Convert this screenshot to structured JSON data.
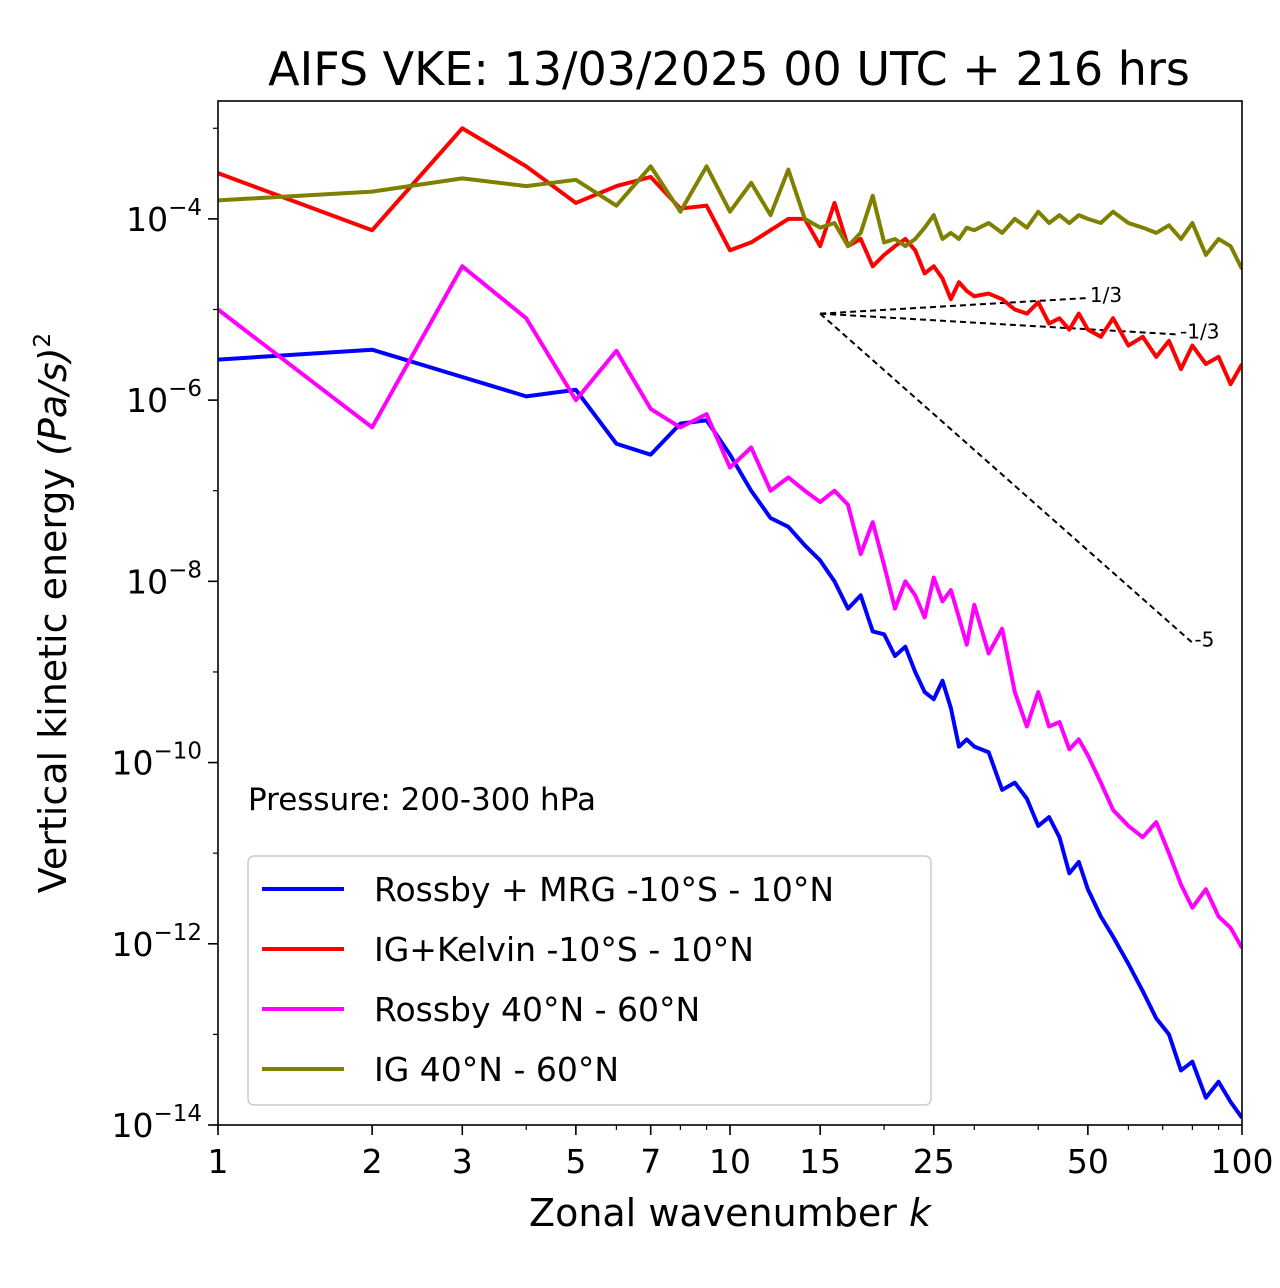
{
  "chart_data": {
    "type": "line",
    "title": "AIFS VKE: 13/03/2025 00 UTC + 216 hrs",
    "xlabel": "Zonal wavenumber",
    "xlabel_var": "k",
    "ylabel": "Vertical kinetic energy",
    "ylabel_units": "(Pa/s)",
    "ylabel_power": "2",
    "x_scale": "log",
    "y_scale": "log",
    "xlim": [
      1,
      100
    ],
    "ylim": [
      1e-14,
      0.002
    ],
    "x_ticks": [
      1,
      2,
      3,
      5,
      7,
      10,
      15,
      25,
      50,
      100
    ],
    "x_tick_labels": [
      "1",
      "2",
      "3",
      "5",
      "7",
      "10",
      "15",
      "25",
      "50",
      "100"
    ],
    "y_ticks": [
      0.0001,
      1e-06,
      1e-08,
      1e-10,
      1e-12,
      1e-14
    ],
    "y_tick_base": "10",
    "y_tick_exponents": [
      "−4",
      "−6",
      "−8",
      "−10",
      "−12",
      "−14"
    ],
    "annotation": "Pressure: 200-300 hPa",
    "legend_position": "lower-left",
    "grid": false,
    "series": [
      {
        "name": "Rossby + MRG -10°S - 10°N",
        "color": "#0000ff",
        "x": [
          1,
          2,
          3,
          4,
          5,
          6,
          7,
          8,
          9,
          10,
          11,
          12,
          13,
          14,
          15,
          16,
          17,
          18,
          19,
          20,
          21,
          22,
          23,
          24,
          25,
          26,
          27,
          28,
          29,
          30,
          32,
          34,
          36,
          38,
          40,
          42,
          44,
          46,
          48,
          50,
          53,
          56,
          60,
          64,
          68,
          72,
          76,
          80,
          85,
          90,
          95,
          100
        ],
        "y": [
          2.8e-06,
          3.6e-06,
          1.8e-06,
          1.1e-06,
          1.3e-06,
          3.3e-07,
          2.5e-07,
          5.5e-07,
          6e-07,
          2.5e-07,
          1e-07,
          5e-08,
          4e-08,
          2.5e-08,
          1.7e-08,
          1e-08,
          5e-09,
          7e-09,
          2.8e-09,
          2.6e-09,
          1.5e-09,
          1.9e-09,
          1e-09,
          6e-10,
          5e-10,
          8e-10,
          4e-10,
          1.5e-10,
          1.8e-10,
          1.5e-10,
          1.3e-10,
          5e-11,
          6e-11,
          4e-11,
          2e-11,
          2.5e-11,
          1.5e-11,
          6e-12,
          8e-12,
          4e-12,
          2e-12,
          1.2e-12,
          6e-13,
          3e-13,
          1.5e-13,
          1e-13,
          4e-14,
          5e-14,
          2e-14,
          3e-14,
          1.8e-14,
          1.2e-14
        ]
      },
      {
        "name": "IG+Kelvin -10°S - 10°N",
        "color": "#ff0000",
        "x": [
          1,
          2,
          3,
          4,
          5,
          6,
          7,
          8,
          9,
          10,
          11,
          12,
          13,
          14,
          15,
          16,
          17,
          18,
          19,
          20,
          21,
          22,
          23,
          24,
          25,
          26,
          27,
          28,
          29,
          30,
          32,
          34,
          36,
          38,
          40,
          42,
          44,
          46,
          48,
          50,
          53,
          56,
          60,
          64,
          68,
          72,
          76,
          80,
          85,
          90,
          95,
          100
        ],
        "y": [
          0.00032,
          7.5e-05,
          0.001,
          0.00038,
          0.00015,
          0.00023,
          0.00029,
          0.00013,
          0.00014,
          4.5e-05,
          5.5e-05,
          7.5e-05,
          0.0001,
          0.0001,
          5e-05,
          0.00015,
          5e-05,
          6e-05,
          3e-05,
          4e-05,
          5e-05,
          6e-05,
          4.5e-05,
          2.5e-05,
          3e-05,
          2.2e-05,
          1.3e-05,
          2e-05,
          1.6e-05,
          1.4e-05,
          1.5e-05,
          1.3e-05,
          1e-05,
          9e-06,
          1.2e-05,
          7e-06,
          8e-06,
          6e-06,
          9e-06,
          6e-06,
          5e-06,
          8e-06,
          4e-06,
          5e-06,
          3e-06,
          4.5e-06,
          2.2e-06,
          4e-06,
          2.5e-06,
          3e-06,
          1.5e-06,
          2.5e-06
        ]
      },
      {
        "name": "Rossby 40°N - 60°N",
        "color": "#ff00ff",
        "x": [
          1,
          2,
          3,
          4,
          5,
          6,
          7,
          8,
          9,
          10,
          11,
          12,
          13,
          14,
          15,
          16,
          17,
          18,
          19,
          20,
          21,
          22,
          23,
          24,
          25,
          26,
          27,
          28,
          29,
          30,
          32,
          34,
          36,
          38,
          40,
          42,
          44,
          46,
          48,
          50,
          53,
          56,
          60,
          64,
          68,
          72,
          76,
          80,
          85,
          90,
          95,
          100
        ],
        "y": [
          1e-05,
          5e-07,
          3e-05,
          8e-06,
          1e-06,
          3.5e-06,
          8e-07,
          5e-07,
          7e-07,
          1.8e-07,
          3e-07,
          1e-07,
          1.4e-07,
          1e-07,
          7.5e-08,
          1e-07,
          7e-08,
          2e-08,
          4.5e-08,
          1.5e-08,
          5e-09,
          1e-08,
          7e-09,
          4e-09,
          1.1e-08,
          6e-09,
          8e-09,
          4e-09,
          2e-09,
          5.5e-09,
          1.6e-09,
          3e-09,
          6e-10,
          2.5e-10,
          6e-10,
          2.5e-10,
          2.8e-10,
          1.4e-10,
          1.8e-10,
          1.2e-10,
          6e-11,
          3e-11,
          2e-11,
          1.5e-11,
          2.2e-11,
          1e-11,
          4.5e-12,
          2.5e-12,
          4e-12,
          2e-12,
          1.5e-12,
          9e-13
        ]
      },
      {
        "name": "IG 40°N - 60°N",
        "color": "#808000",
        "x": [
          1,
          2,
          3,
          4,
          5,
          6,
          7,
          8,
          9,
          10,
          11,
          12,
          13,
          14,
          15,
          16,
          17,
          18,
          19,
          20,
          21,
          22,
          23,
          24,
          25,
          26,
          27,
          28,
          29,
          30,
          32,
          34,
          36,
          38,
          40,
          42,
          44,
          46,
          48,
          50,
          53,
          56,
          60,
          64,
          68,
          72,
          76,
          80,
          85,
          90,
          95,
          100
        ],
        "y": [
          0.00016,
          0.0002,
          0.00028,
          0.00023,
          0.00027,
          0.00014,
          0.00038,
          0.00012,
          0.00038,
          0.00012,
          0.00025,
          0.00011,
          0.00035,
          0.0001,
          8e-05,
          9e-05,
          5e-05,
          7e-05,
          0.00018,
          5.5e-05,
          6e-05,
          5e-05,
          6e-05,
          8e-05,
          0.00011,
          6e-05,
          7e-05,
          6e-05,
          8e-05,
          7.5e-05,
          9e-05,
          7e-05,
          0.0001,
          8e-05,
          0.00012,
          9e-05,
          0.00011,
          9e-05,
          0.00011,
          0.0001,
          9e-05,
          0.00012,
          9e-05,
          8e-05,
          7e-05,
          8.5e-05,
          6e-05,
          9e-05,
          4e-05,
          6e-05,
          5e-05,
          2.8e-05
        ]
      }
    ],
    "reference_slopes": [
      {
        "label": "1/3",
        "slope": 0.3333,
        "x": [
          15,
          50
        ],
        "y": [
          9e-06,
          1.34e-05
        ]
      },
      {
        "label": "-1/3",
        "slope": -0.3333,
        "x": [
          15,
          75
        ],
        "y": [
          9e-06,
          5.3e-06
        ]
      },
      {
        "label": "-5",
        "slope": -5,
        "x": [
          15,
          80
        ],
        "y": [
          9e-06,
          2.1e-09
        ]
      }
    ],
    "reference_color": "#000000"
  }
}
